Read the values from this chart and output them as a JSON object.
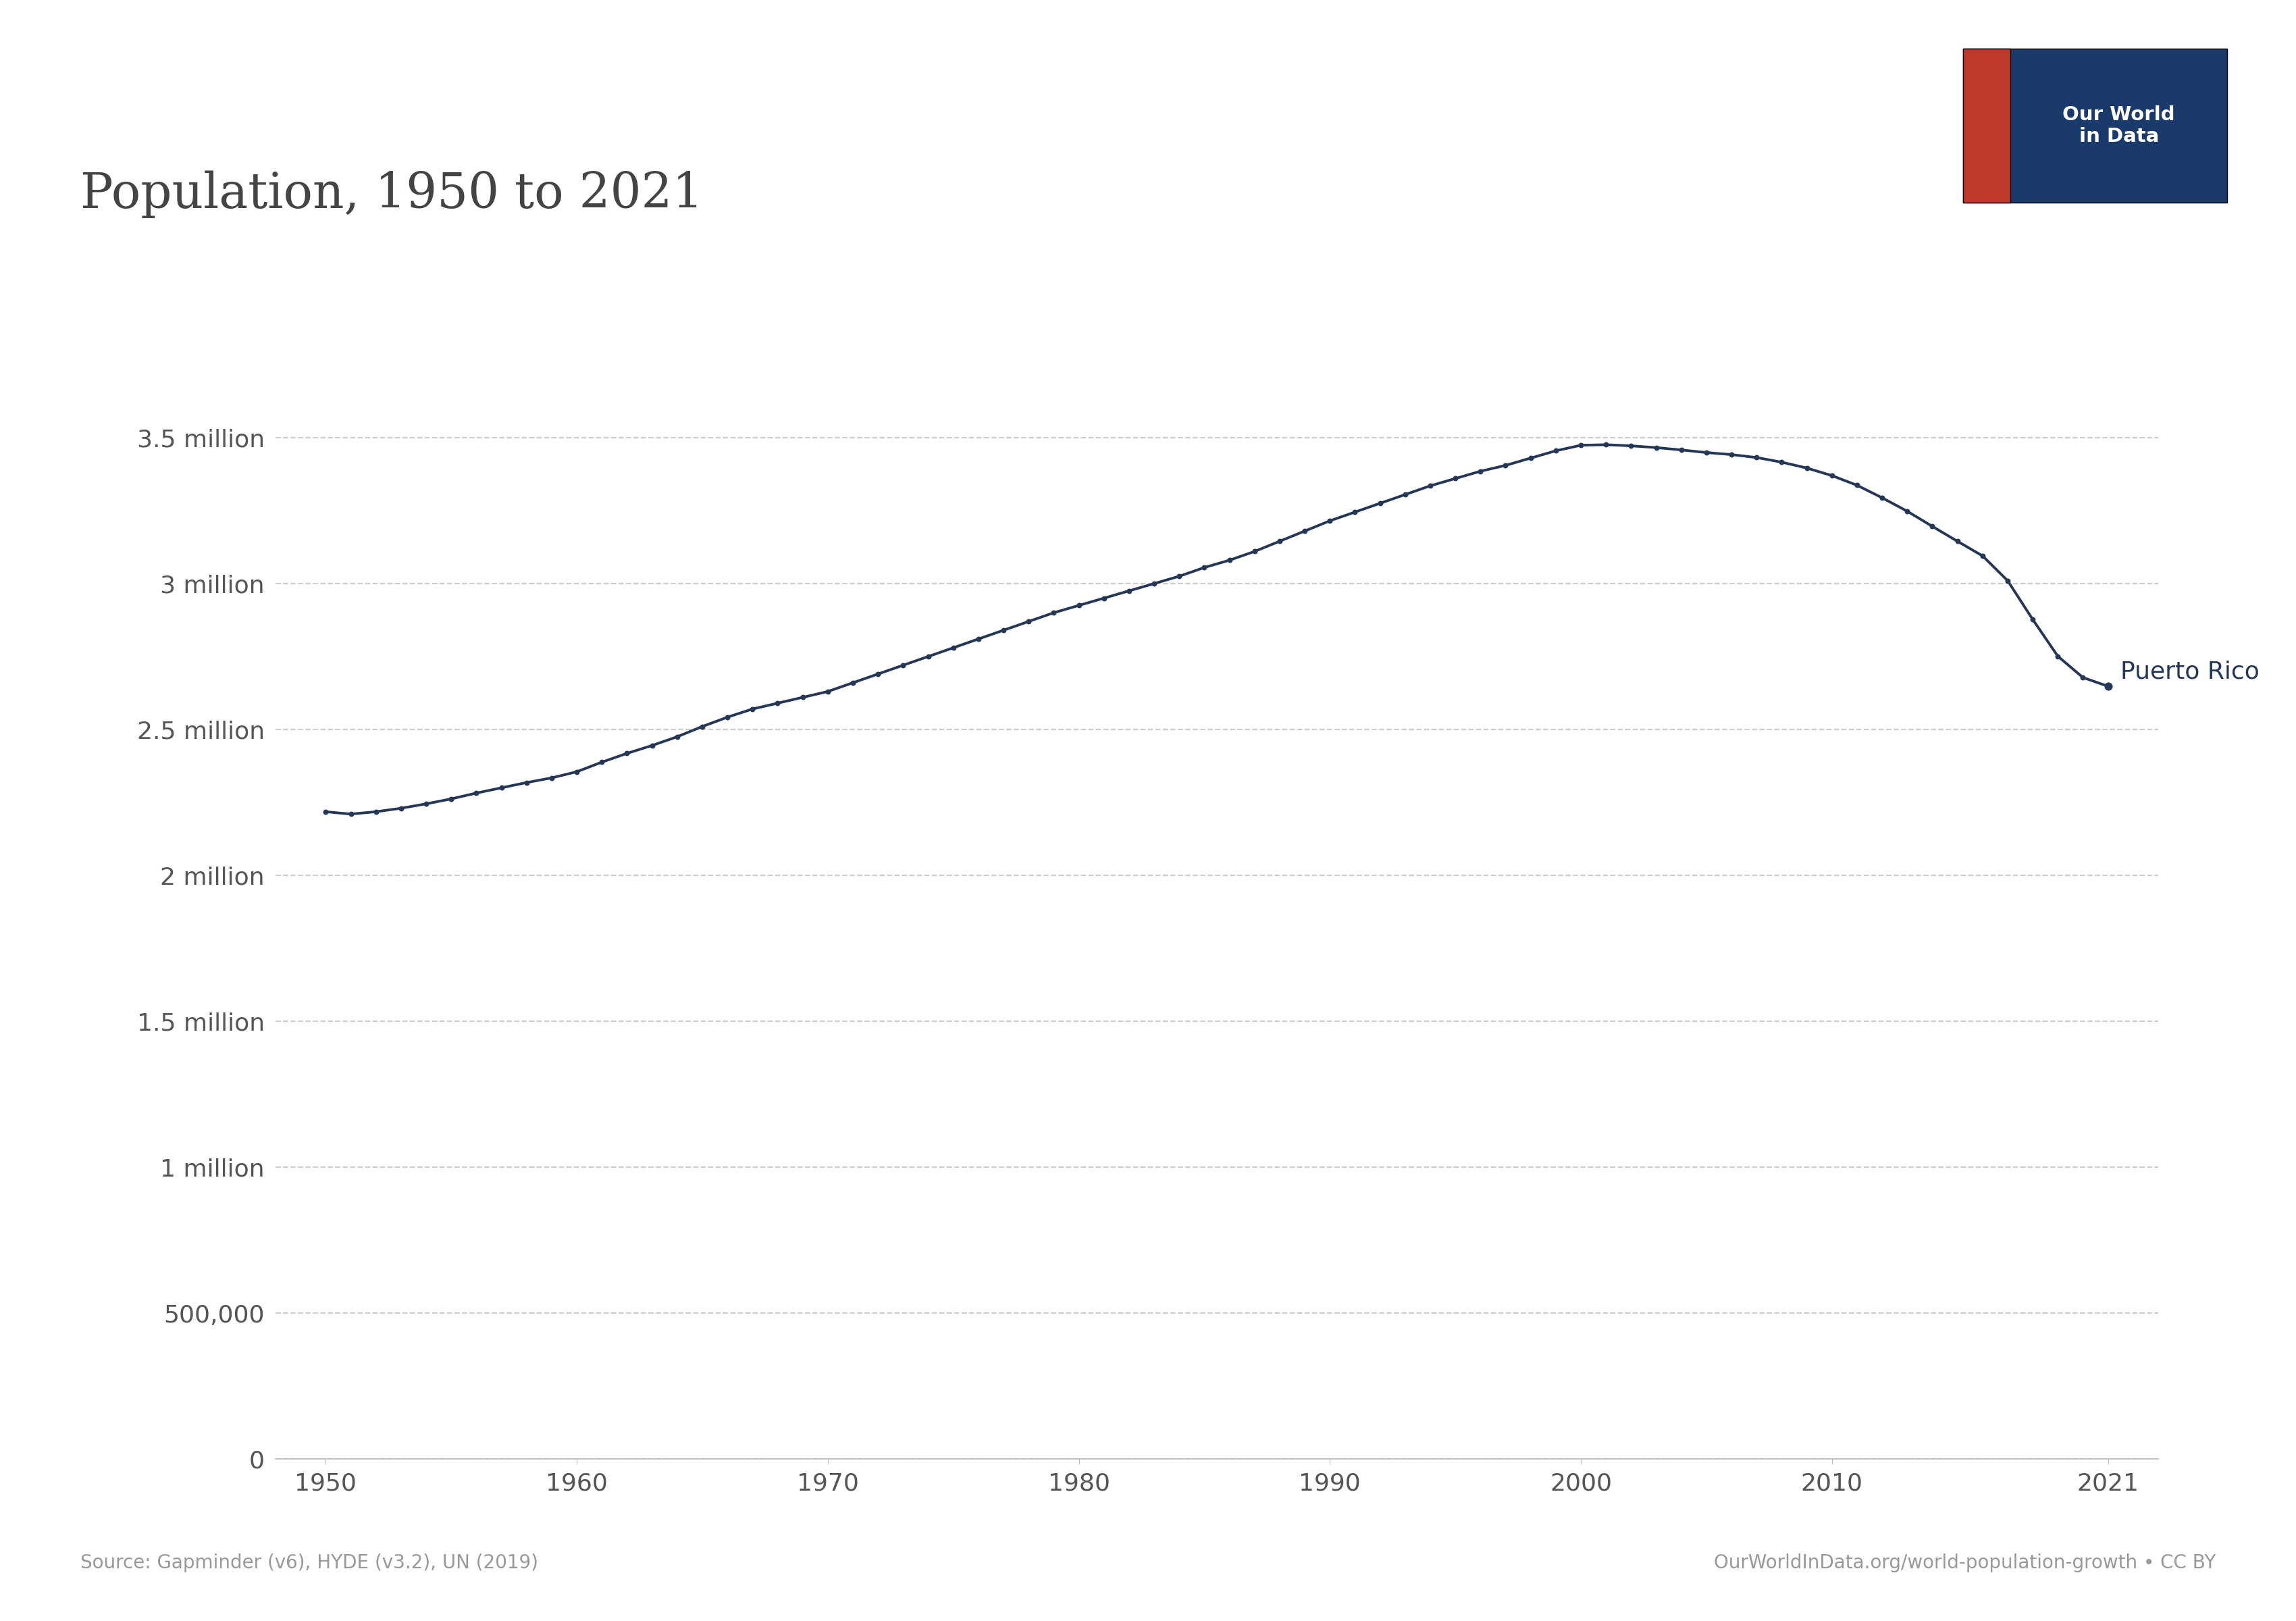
{
  "title": "Population, 1950 to 2021",
  "line_color": "#243757",
  "background_color": "#ffffff",
  "label_color": "#555555",
  "source_text": "Source: Gapminder (v6), HYDE (v3.2), UN (2019)",
  "credit_text": "OurWorldInData.org/world-population-growth • CC BY",
  "series_label": "Puerto Rico",
  "years": [
    1950,
    1951,
    1952,
    1953,
    1954,
    1955,
    1956,
    1957,
    1958,
    1959,
    1960,
    1961,
    1962,
    1963,
    1964,
    1965,
    1966,
    1967,
    1968,
    1969,
    1970,
    1971,
    1972,
    1973,
    1974,
    1975,
    1976,
    1977,
    1978,
    1979,
    1980,
    1981,
    1982,
    1983,
    1984,
    1985,
    1986,
    1987,
    1988,
    1989,
    1990,
    1991,
    1992,
    1993,
    1994,
    1995,
    1996,
    1997,
    1998,
    1999,
    2000,
    2001,
    2002,
    2003,
    2004,
    2005,
    2006,
    2007,
    2008,
    2009,
    2010,
    2011,
    2012,
    2013,
    2014,
    2015,
    2016,
    2017,
    2018,
    2019,
    2020,
    2021
  ],
  "population": [
    2218000,
    2210000,
    2218000,
    2230000,
    2245000,
    2262000,
    2282000,
    2300000,
    2318000,
    2334000,
    2355000,
    2388000,
    2418000,
    2445000,
    2475000,
    2510000,
    2542000,
    2570000,
    2590000,
    2610000,
    2630000,
    2660000,
    2690000,
    2720000,
    2750000,
    2780000,
    2810000,
    2840000,
    2870000,
    2900000,
    2925000,
    2950000,
    2975000,
    3000000,
    3025000,
    3055000,
    3080000,
    3110000,
    3145000,
    3180000,
    3215000,
    3245000,
    3275000,
    3305000,
    3335000,
    3360000,
    3385000,
    3405000,
    3430000,
    3455000,
    3474000,
    3476000,
    3472000,
    3466000,
    3458000,
    3449000,
    3442000,
    3432000,
    3416000,
    3396000,
    3370000,
    3337000,
    3294000,
    3248000,
    3196000,
    3145000,
    3095000,
    3010000,
    2877000,
    2751000,
    2678000,
    2648000
  ],
  "ylim": [
    0,
    4000000
  ],
  "yticks": [
    0,
    500000,
    1000000,
    1500000,
    2000000,
    2500000,
    3000000,
    3500000
  ],
  "ytick_labels": [
    "0",
    "500,000",
    "1 million",
    "1.5 million",
    "2 million",
    "2.5 million",
    "3 million",
    "3.5 million"
  ],
  "xlim": [
    1948,
    2023
  ],
  "xticks": [
    1950,
    1960,
    1970,
    1980,
    1990,
    2000,
    2010,
    2021
  ],
  "logo_bg_color": "#1a3a6b",
  "logo_red_color": "#c0392b",
  "logo_text_line1": "Our World",
  "logo_text_line2": "in Data"
}
